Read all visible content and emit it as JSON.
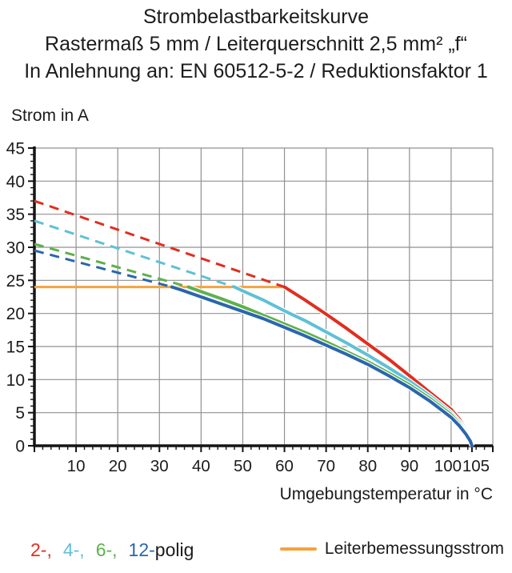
{
  "title": {
    "line1": "Strombelastbarkeitskurve",
    "line2": "Rastermaß 5 mm / Leiterquerschnitt 2,5 mm² „f“",
    "line3": "In Anlehnung an: EN 60512-5-2 / Reduktionsfaktor 1"
  },
  "axes": {
    "y_label": "Strom in A",
    "x_label": "Umgebungstemperatur in °C"
  },
  "legend": {
    "poles": [
      {
        "label": "2-,",
        "color": "#e02e1f"
      },
      {
        "label": "4-,",
        "color": "#5fc0d6"
      },
      {
        "label": "6-,",
        "color": "#5db14c"
      },
      {
        "label": "12-",
        "color": "#2b66ad"
      }
    ],
    "poles_suffix": "polig",
    "reference": {
      "label": "Leiterbemessungsstrom",
      "color": "#f5a33c"
    }
  },
  "colors": {
    "grid": "#919191",
    "axis": "#151515",
    "text": "#1b1b1b"
  },
  "chart_data": {
    "type": "line",
    "title": "Strombelastbarkeitskurve",
    "xlabel": "Umgebungstemperatur in °C",
    "ylabel": "Strom in A",
    "xlim": [
      0,
      110
    ],
    "ylim": [
      0,
      45
    ],
    "grid": true,
    "x_gridlines": [
      10,
      20,
      30,
      40,
      50,
      60,
      70,
      80,
      90,
      100,
      110
    ],
    "y_gridlines": [
      5,
      10,
      15,
      20,
      25,
      30,
      35,
      40,
      45
    ],
    "x_tick_labels": [
      10,
      20,
      30,
      40,
      50,
      60,
      70,
      80,
      90,
      100,
      105
    ],
    "y_tick_labels": [
      0,
      5,
      10,
      15,
      20,
      25,
      30,
      35,
      40,
      45
    ],
    "x_minor_step": 2,
    "y_minor_step": 1,
    "reference_line": {
      "name": "Leiterbemessungsstrom",
      "value_A": 24,
      "x_from": 0,
      "x_to": 60,
      "color": "#f5a33c"
    },
    "series": [
      {
        "name": "2-polig",
        "color": "#e02e1f",
        "dashed": [
          [
            0,
            37
          ],
          [
            60,
            24
          ]
        ],
        "solid": [
          [
            60,
            24
          ],
          [
            65,
            22
          ],
          [
            70,
            19.9
          ],
          [
            75,
            17.7
          ],
          [
            80,
            15.4
          ],
          [
            85,
            13.1
          ],
          [
            90,
            10.6
          ],
          [
            95,
            8
          ],
          [
            100,
            5.5
          ],
          [
            102,
            4
          ],
          [
            103.5,
            2.4
          ],
          [
            104.6,
            1
          ],
          [
            105,
            0
          ]
        ]
      },
      {
        "name": "4-polig",
        "color": "#5fc0d6",
        "dashed": [
          [
            0,
            34
          ],
          [
            48,
            24
          ]
        ],
        "solid": [
          [
            48,
            24
          ],
          [
            50,
            23.4
          ],
          [
            55,
            22
          ],
          [
            60,
            20.4
          ],
          [
            65,
            18.9
          ],
          [
            70,
            17.2
          ],
          [
            75,
            15.5
          ],
          [
            80,
            13.7
          ],
          [
            85,
            11.8
          ],
          [
            90,
            9.8
          ],
          [
            95,
            7.5
          ],
          [
            100,
            5
          ],
          [
            102,
            3.6
          ],
          [
            103.5,
            2.2
          ],
          [
            104.6,
            0.9
          ],
          [
            105,
            0
          ]
        ]
      },
      {
        "name": "6-polig",
        "color": "#5db14c",
        "dashed": [
          [
            0,
            30.5
          ],
          [
            37,
            24
          ]
        ],
        "solid": [
          [
            37,
            24
          ],
          [
            40,
            23.3
          ],
          [
            45,
            22.2
          ],
          [
            50,
            21
          ],
          [
            55,
            19.7
          ],
          [
            60,
            18.4
          ],
          [
            65,
            17.1
          ],
          [
            70,
            15.7
          ],
          [
            75,
            14.2
          ],
          [
            80,
            12.7
          ],
          [
            85,
            11
          ],
          [
            90,
            9.2
          ],
          [
            95,
            7.1
          ],
          [
            100,
            4.7
          ],
          [
            102,
            3.3
          ],
          [
            103.5,
            2
          ],
          [
            104.6,
            0.8
          ],
          [
            105,
            0
          ]
        ]
      },
      {
        "name": "12-polig",
        "color": "#2b66ad",
        "dashed": [
          [
            0,
            29.5
          ],
          [
            33,
            24
          ]
        ],
        "solid": [
          [
            33,
            24
          ],
          [
            35,
            23.6
          ],
          [
            40,
            22.5
          ],
          [
            45,
            21.4
          ],
          [
            50,
            20.3
          ],
          [
            55,
            19.2
          ],
          [
            60,
            17.9
          ],
          [
            65,
            16.6
          ],
          [
            70,
            15.2
          ],
          [
            75,
            13.8
          ],
          [
            80,
            12.3
          ],
          [
            85,
            10.6
          ],
          [
            90,
            8.8
          ],
          [
            95,
            6.7
          ],
          [
            100,
            4.3
          ],
          [
            102,
            3
          ],
          [
            103.5,
            1.8
          ],
          [
            104.6,
            0.7
          ],
          [
            105,
            0
          ]
        ]
      }
    ]
  }
}
